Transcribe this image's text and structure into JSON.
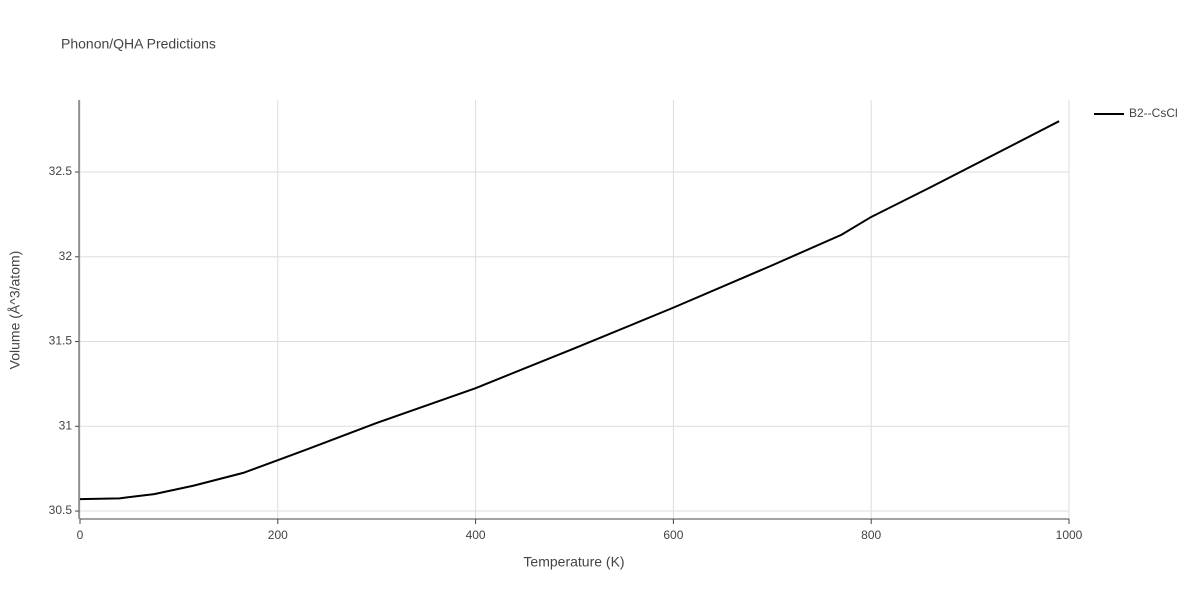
{
  "chart_data": {
    "type": "line",
    "title": "Phonon/QHA Predictions",
    "x_label": "Temperature (K)",
    "y_label": "Volume (Å^3/atom)",
    "x": [
      0,
      40,
      75,
      115,
      165,
      200,
      230,
      300,
      400,
      500,
      600,
      700,
      770,
      800,
      860,
      990
    ],
    "series": [
      {
        "name": "B2--CsCl",
        "color": "#000000",
        "values": [
          30.57,
          30.575,
          30.6,
          30.65,
          30.725,
          30.8,
          30.865,
          31.02,
          31.225,
          31.46,
          31.7,
          31.95,
          32.13,
          32.235,
          32.41,
          32.8
        ]
      }
    ],
    "xlim": [
      0,
      1000
    ],
    "xticks": [
      0,
      200,
      400,
      600,
      800,
      1000
    ],
    "ylim": [
      30.453,
      32.925
    ],
    "yticks": [
      30.5,
      31,
      31.5,
      32,
      32.5
    ],
    "grid": true,
    "legend": "right"
  }
}
